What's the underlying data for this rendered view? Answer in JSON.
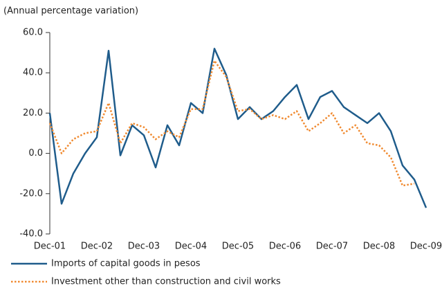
{
  "chart_data": {
    "type": "line",
    "subtitle": "(Annual percentage variation)",
    "categories": [
      "Dec-01",
      null,
      null,
      null,
      "Dec-02",
      null,
      null,
      null,
      "Dec-03",
      null,
      null,
      null,
      "Dec-04",
      null,
      null,
      null,
      "Dec-05",
      null,
      null,
      null,
      "Dec-06",
      null,
      null,
      null,
      "Dec-07",
      null,
      null,
      null,
      "Dec-08",
      null,
      null,
      null,
      "Dec-09"
    ],
    "series": [
      {
        "name": "Imports of capital goods in pesos",
        "color": "#1f5c8b",
        "dash": "solid",
        "values": [
          20,
          -25,
          -10,
          0,
          8,
          51,
          -1,
          14,
          9,
          -7,
          14,
          4,
          25,
          20,
          52,
          39,
          17,
          23,
          17,
          21,
          28,
          34,
          17,
          28,
          31,
          23,
          19,
          15,
          20,
          11,
          -6,
          -13,
          -27
        ]
      },
      {
        "name": "Investment other than construction and civil works",
        "color": "#f08a30",
        "dash": "dotted",
        "values": [
          15,
          0,
          7,
          10,
          11,
          25,
          5,
          15,
          13,
          7,
          11,
          8,
          22,
          22,
          46,
          38,
          21,
          22,
          17,
          19,
          17,
          21,
          11,
          15,
          20,
          10,
          14,
          5,
          4,
          -2,
          -16,
          -15,
          null
        ]
      }
    ],
    "ylim": [
      -40,
      60
    ],
    "yticks": [
      {
        "value": -40,
        "label": "-40.0"
      },
      {
        "value": -20,
        "label": "-20.0"
      },
      {
        "value": 0,
        "label": "0.0"
      },
      {
        "value": 20,
        "label": "20.0"
      },
      {
        "value": 40,
        "label": "40.0"
      },
      {
        "value": 60,
        "label": "60.0"
      }
    ],
    "legend": "bottom"
  }
}
